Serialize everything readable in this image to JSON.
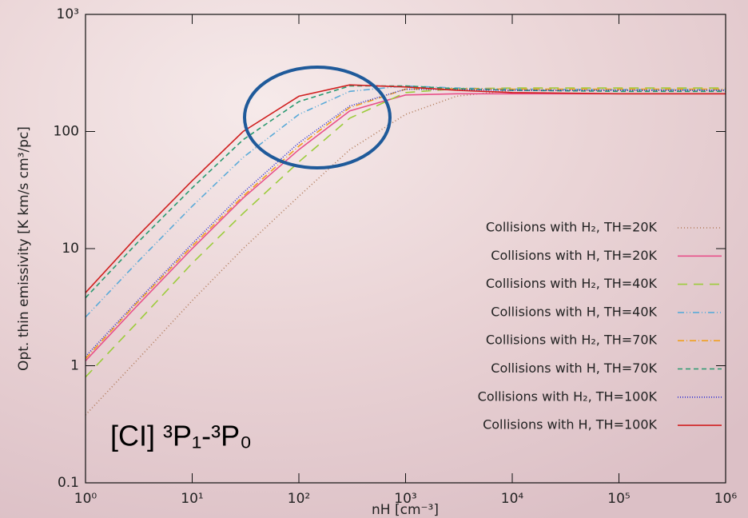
{
  "chart_data": {
    "type": "line",
    "xlabel": "nH [cm⁻³]",
    "ylabel": "Opt. thin emissivity [K km/s cm³/pc]",
    "annotation": "[CI] ³P₁-³P₀",
    "log_x": true,
    "log_y": true,
    "legend": "lower right",
    "x": [
      1,
      3,
      10,
      30,
      100,
      300,
      1000,
      3000,
      10000,
      100000,
      1000000
    ],
    "xlim": [
      1,
      1000000
    ],
    "xticks": [
      {
        "value": 1,
        "label": "10⁰"
      },
      {
        "value": 10,
        "label": "10¹"
      },
      {
        "value": 100,
        "label": "10²"
      },
      {
        "value": 1000,
        "label": "10³"
      },
      {
        "value": 10000,
        "label": "10⁴"
      },
      {
        "value": 100000,
        "label": "10⁵"
      },
      {
        "value": 1000000,
        "label": "10⁶"
      }
    ],
    "ylim": [
      0.1,
      1000
    ],
    "yticks": [
      0.1,
      1,
      10,
      100,
      {
        "value": 1000,
        "label": "10³"
      }
    ],
    "series": [
      {
        "name": "Collisions with H₂, TH=20K",
        "color": "#b07a5a",
        "dash": "1,3",
        "values": [
          0.38,
          1.1,
          3.6,
          10,
          28,
          70,
          140,
          200,
          225,
          225,
          225
        ]
      },
      {
        "name": "Collisions with H, TH=20K",
        "color": "#e8508a",
        "dash": "none",
        "values": [
          1.1,
          3.2,
          10,
          27,
          70,
          150,
          205,
          210,
          210,
          210,
          210
        ]
      },
      {
        "name": "Collisions with H₂, TH=40K",
        "color": "#9ccc3c",
        "dash": "12,8",
        "values": [
          0.8,
          2.3,
          7.5,
          20,
          55,
          130,
          215,
          232,
          235,
          235,
          235
        ]
      },
      {
        "name": "Collisions with H, TH=40K",
        "color": "#5aaad8",
        "dash": "8,3,1,3,1,3",
        "values": [
          2.6,
          7.5,
          23,
          60,
          140,
          220,
          245,
          235,
          230,
          228,
          228
        ]
      },
      {
        "name": "Collisions with H₂, TH=70K",
        "color": "#f0a020",
        "dash": "8,3,1,3",
        "values": [
          1.15,
          3.4,
          10.5,
          28,
          75,
          160,
          230,
          232,
          230,
          230,
          230
        ]
      },
      {
        "name": "Collisions with H, TH=70K",
        "color": "#2a9a70",
        "dash": "6,4",
        "values": [
          3.8,
          11,
          33,
          85,
          180,
          245,
          245,
          232,
          225,
          220,
          220
        ]
      },
      {
        "name": "Collisions with H₂, TH=100K",
        "color": "#3030d0",
        "dash": "1,2",
        "values": [
          1.2,
          3.5,
          11,
          30,
          80,
          165,
          230,
          228,
          225,
          225,
          225
        ]
      },
      {
        "name": "Collisions with H, TH=100K",
        "color": "#d02020",
        "dash": "none",
        "values": [
          4.2,
          12.5,
          38,
          100,
          200,
          250,
          240,
          225,
          215,
          210,
          210
        ]
      }
    ]
  }
}
